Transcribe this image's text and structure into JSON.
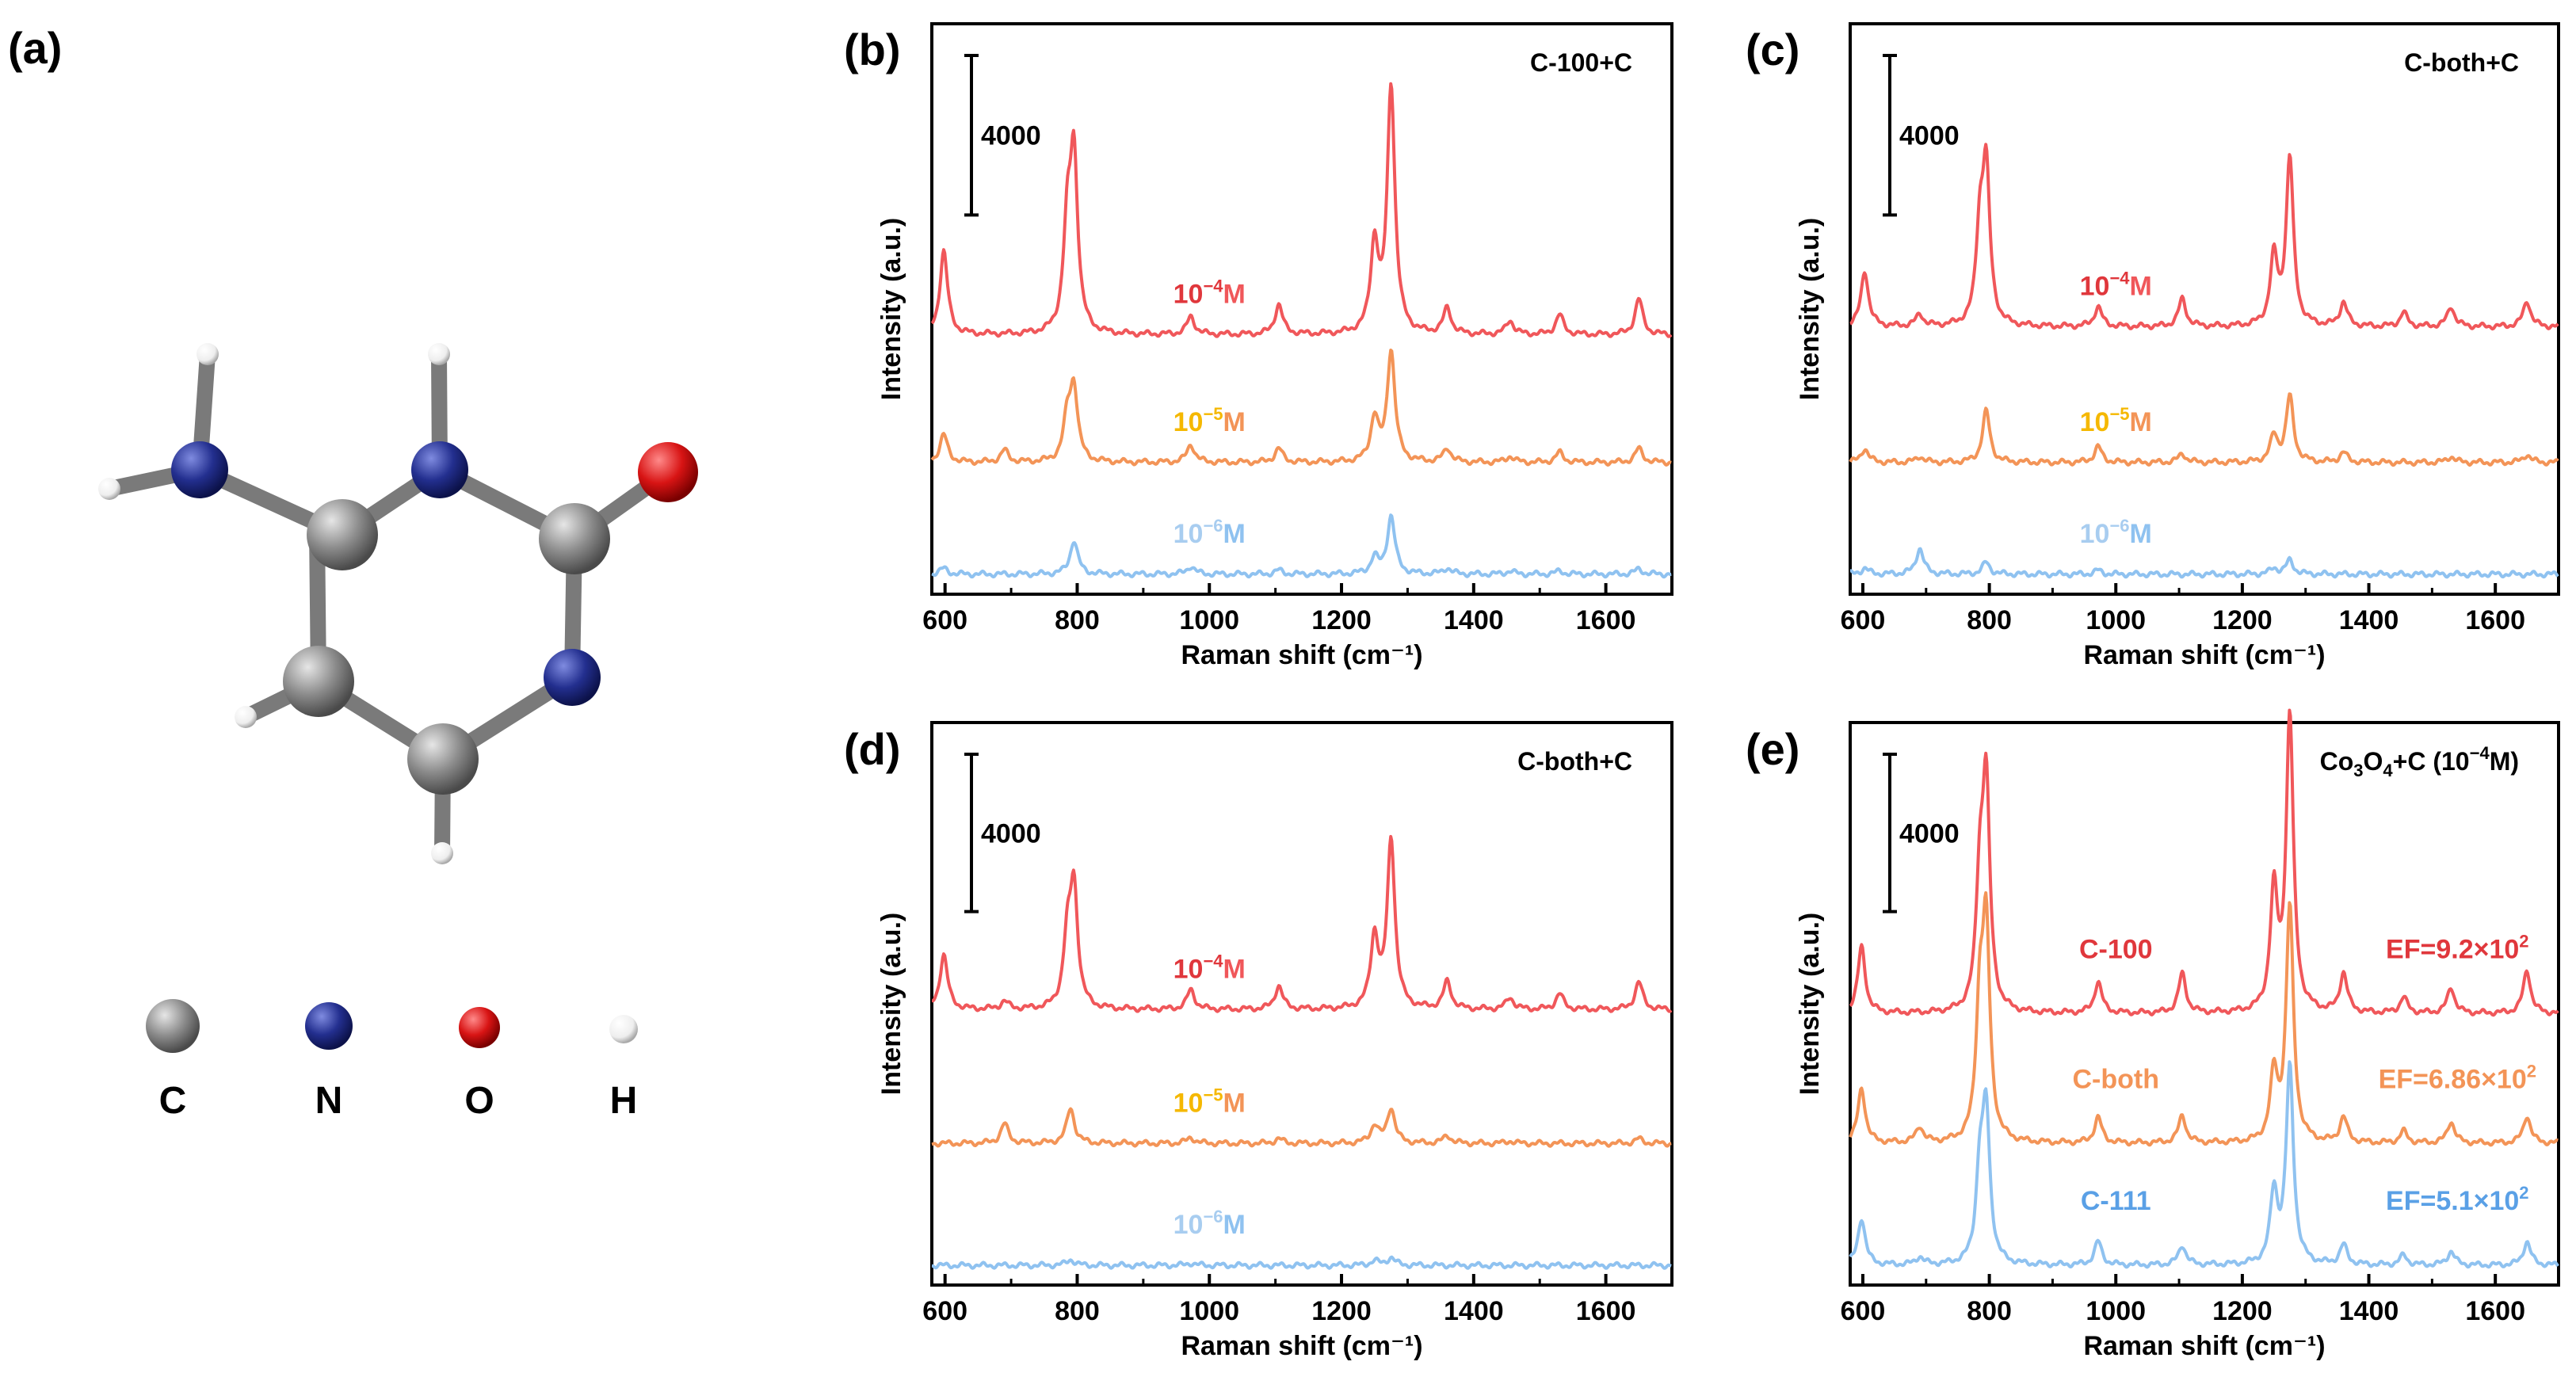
{
  "figure": {
    "panel_a": {
      "label": "(a)",
      "molecule": "cytosine",
      "legend": [
        {
          "symbol": "C",
          "color": "#8c8c8c"
        },
        {
          "symbol": "N",
          "color": "#232f8f"
        },
        {
          "symbol": "O",
          "color": "#d81414"
        },
        {
          "symbol": "H",
          "color": "#f2f2f2"
        }
      ]
    }
  },
  "chart_data": [
    {
      "panel": "(b)",
      "type": "line",
      "title": "C-100+C",
      "xlabel": "Raman shift (cm⁻¹)",
      "ylabel": "Intensity (a.u.)",
      "xlim": [
        580,
        1700
      ],
      "xticks": [
        "600",
        "800",
        "1000",
        "1200",
        "1400",
        "1600"
      ],
      "scale_bar": "4000",
      "series": [
        {
          "name": "10⁻⁴M",
          "color": "#f0575a",
          "baseline": 6200,
          "lsuper": "−4",
          "lcolor": "#e0373c",
          "peaks": [
            [
              598,
              2100
            ],
            [
              785,
              2400
            ],
            [
              795,
              4300
            ],
            [
              972,
              450
            ],
            [
              1105,
              750
            ],
            [
              1250,
              2200
            ],
            [
              1275,
              6200
            ],
            [
              1360,
              650
            ],
            [
              1455,
              350
            ],
            [
              1530,
              500
            ],
            [
              1650,
              900
            ]
          ]
        },
        {
          "name": "10⁻⁵M",
          "color": "#f39457",
          "baseline": 3000,
          "lsuper": "−5",
          "lcolor": "#f5b800",
          "peaks": [
            [
              598,
              700
            ],
            [
              690,
              300
            ],
            [
              785,
              1000
            ],
            [
              795,
              1800
            ],
            [
              972,
              450
            ],
            [
              1105,
              350
            ],
            [
              1250,
              1100
            ],
            [
              1275,
              2800
            ],
            [
              1360,
              350
            ],
            [
              1455,
              150
            ],
            [
              1530,
              250
            ],
            [
              1650,
              350
            ]
          ]
        },
        {
          "name": "10⁻⁶M",
          "color": "#8fc2f0",
          "baseline": 200,
          "lsuper": "−6",
          "lcolor": "#a8cdf0",
          "peaks": [
            [
              598,
              150
            ],
            [
              795,
              850
            ],
            [
              972,
              200
            ],
            [
              1105,
              100
            ],
            [
              1250,
              400
            ],
            [
              1275,
              1450
            ],
            [
              1360,
              150
            ],
            [
              1455,
              80
            ],
            [
              1530,
              80
            ],
            [
              1650,
              130
            ]
          ]
        }
      ]
    },
    {
      "panel": "(c)",
      "type": "line",
      "title": "C-both+C",
      "xlabel": "Raman shift (cm⁻¹)",
      "ylabel": "Intensity (a.u.)",
      "xlim": [
        580,
        1700
      ],
      "xticks": [
        "600",
        "800",
        "1000",
        "1200",
        "1400",
        "1600"
      ],
      "scale_bar": "4000",
      "series": [
        {
          "name": "10⁻⁴M",
          "color": "#f0575a",
          "baseline": 6400,
          "lsuper": "−4",
          "lcolor": "#e0373c",
          "peaks": [
            [
              603,
              1400
            ],
            [
              690,
              300
            ],
            [
              785,
              2200
            ],
            [
              795,
              3800
            ],
            [
              972,
              500
            ],
            [
              1105,
              700
            ],
            [
              1250,
              1700
            ],
            [
              1275,
              4200
            ],
            [
              1360,
              600
            ],
            [
              1455,
              350
            ],
            [
              1530,
              500
            ],
            [
              1650,
              650
            ]
          ]
        },
        {
          "name": "10⁻⁵M",
          "color": "#f39457",
          "baseline": 3000,
          "lsuper": "−5",
          "lcolor": "#f5b800",
          "peaks": [
            [
              603,
              350
            ],
            [
              690,
              150
            ],
            [
              795,
              1300
            ],
            [
              972,
              400
            ],
            [
              1105,
              220
            ],
            [
              1250,
              650
            ],
            [
              1275,
              1650
            ],
            [
              1360,
              250
            ],
            [
              1530,
              150
            ],
            [
              1650,
              200
            ]
          ]
        },
        {
          "name": "10⁻⁶M",
          "color": "#8fc2f0",
          "baseline": 200,
          "lsuper": "−6",
          "lcolor": "#a8cdf0",
          "peaks": [
            [
              603,
              150
            ],
            [
              690,
              650
            ],
            [
              795,
              300
            ],
            [
              972,
              100
            ],
            [
              1250,
              150
            ],
            [
              1275,
              350
            ]
          ]
        }
      ]
    },
    {
      "panel": "(d)",
      "type": "line",
      "title": "C-both+C",
      "xlabel": "Raman shift (cm⁻¹)",
      "ylabel": "Intensity (a.u.)",
      "xlim": [
        580,
        1700
      ],
      "xticks": [
        "600",
        "800",
        "1000",
        "1200",
        "1400",
        "1600"
      ],
      "scale_bar": "4000",
      "series": [
        {
          "name": "10⁻⁴M",
          "color": "#f0575a",
          "baseline": 6700,
          "lsuper": "−4",
          "lcolor": "#e0373c",
          "peaks": [
            [
              598,
              1400
            ],
            [
              690,
              200
            ],
            [
              785,
              1600
            ],
            [
              795,
              3000
            ],
            [
              972,
              500
            ],
            [
              1105,
              600
            ],
            [
              1250,
              1800
            ],
            [
              1275,
              4300
            ],
            [
              1360,
              700
            ],
            [
              1455,
              300
            ],
            [
              1530,
              400
            ],
            [
              1650,
              700
            ]
          ]
        },
        {
          "name": "10⁻⁵M",
          "color": "#f39457",
          "baseline": 3300,
          "lsuper": "−5",
          "lcolor": "#f5b800",
          "peaks": [
            [
              690,
              500
            ],
            [
              790,
              900
            ],
            [
              972,
              150
            ],
            [
              1105,
              120
            ],
            [
              1250,
              450
            ],
            [
              1275,
              900
            ],
            [
              1360,
              200
            ],
            [
              1455,
              60
            ],
            [
              1650,
              120
            ]
          ]
        },
        {
          "name": "10⁻⁶M",
          "color": "#8fc2f0",
          "baseline": 200,
          "lsuper": "−6",
          "lcolor": "#a8cdf0",
          "peaks": [
            [
              790,
              150
            ],
            [
              972,
              60
            ],
            [
              1250,
              120
            ],
            [
              1275,
              200
            ]
          ]
        }
      ]
    },
    {
      "panel": "(e)",
      "type": "line",
      "title": "Co₃O₄+C (10⁻⁴M)",
      "title_parts": {
        "pre": "Co",
        "sub1": "3",
        "mid": "O",
        "sub2": "4",
        "post": "+C (10",
        "sup": "−4",
        "end": "M)"
      },
      "xlabel": "Raman shift (cm⁻¹)",
      "ylabel": "Intensity (a.u.)",
      "xlim": [
        580,
        1700
      ],
      "xticks": [
        "600",
        "800",
        "1000",
        "1200",
        "1400",
        "1600"
      ],
      "scale_bar": "4000",
      "series": [
        {
          "name": "C-100",
          "ef": "EF=9.2×10²",
          "ef_base": "EF=9.2×10",
          "ef_sup": "2",
          "color": "#f0575a",
          "baseline": 6600,
          "lcolor": "#e0373c",
          "peaks": [
            [
              598,
              1700
            ],
            [
              785,
              3000
            ],
            [
              795,
              5600
            ],
            [
              972,
              800
            ],
            [
              1105,
              1000
            ],
            [
              1250,
              3000
            ],
            [
              1275,
              7500
            ],
            [
              1360,
              1000
            ],
            [
              1455,
              400
            ],
            [
              1530,
              650
            ],
            [
              1650,
              1100
            ]
          ]
        },
        {
          "name": "C-both",
          "ef": "EF=6.86×10²",
          "ef_base": "EF=6.86×10",
          "ef_sup": "2",
          "color": "#f39457",
          "baseline": 3300,
          "lcolor": "#f39457",
          "peaks": [
            [
              598,
              1400
            ],
            [
              690,
              400
            ],
            [
              785,
              3200
            ],
            [
              795,
              5200
            ],
            [
              972,
              650
            ],
            [
              1105,
              700
            ],
            [
              1250,
              1700
            ],
            [
              1275,
              6000
            ],
            [
              1360,
              650
            ],
            [
              1455,
              300
            ],
            [
              1530,
              550
            ],
            [
              1650,
              700
            ]
          ]
        },
        {
          "name": "C-111",
          "ef": "EF=5.1×10²",
          "ef_base": "EF=5.1×10",
          "ef_sup": "2",
          "color": "#8fc2f0",
          "baseline": 200,
          "lcolor": "#5aa0e6",
          "peaks": [
            [
              598,
              1200
            ],
            [
              690,
              200
            ],
            [
              785,
              2200
            ],
            [
              795,
              3700
            ],
            [
              972,
              600
            ],
            [
              1105,
              500
            ],
            [
              1250,
              1800
            ],
            [
              1275,
              5000
            ],
            [
              1360,
              500
            ],
            [
              1455,
              250
            ],
            [
              1530,
              350
            ],
            [
              1650,
              600
            ]
          ]
        }
      ]
    }
  ]
}
